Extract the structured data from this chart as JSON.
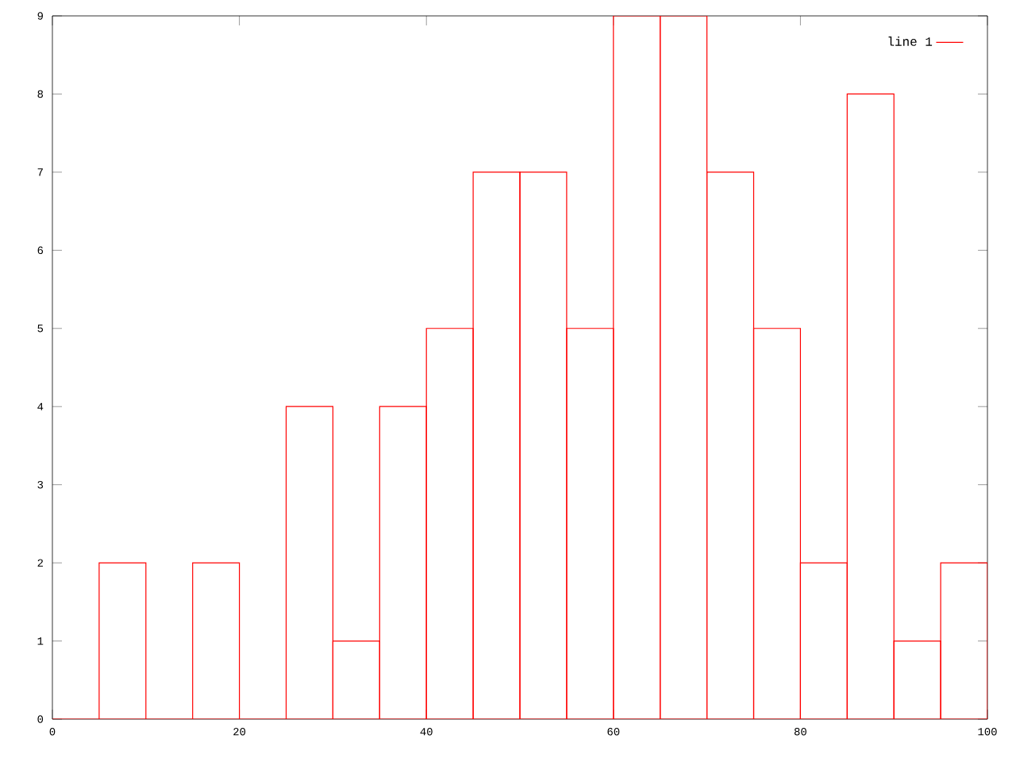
{
  "chart_data": {
    "type": "histogram",
    "bins": [
      0,
      5,
      10,
      15,
      20,
      25,
      30,
      35,
      40,
      45,
      50,
      55,
      60,
      65,
      70,
      75,
      80,
      85,
      90,
      95,
      100
    ],
    "series": [
      {
        "name": "line 1",
        "color": "#ff0000",
        "values": [
          0,
          2,
          0,
          2,
          0,
          4,
          1,
          4,
          5,
          7,
          7,
          5,
          9,
          9,
          7,
          5,
          2,
          8,
          1,
          2
        ]
      }
    ],
    "xlim": [
      0,
      100
    ],
    "ylim": [
      0,
      9
    ],
    "xticks": [
      0,
      20,
      40,
      60,
      80,
      100
    ],
    "yticks": [
      0,
      1,
      2,
      3,
      4,
      5,
      6,
      7,
      8,
      9
    ],
    "legend": "top right",
    "grid": false
  }
}
